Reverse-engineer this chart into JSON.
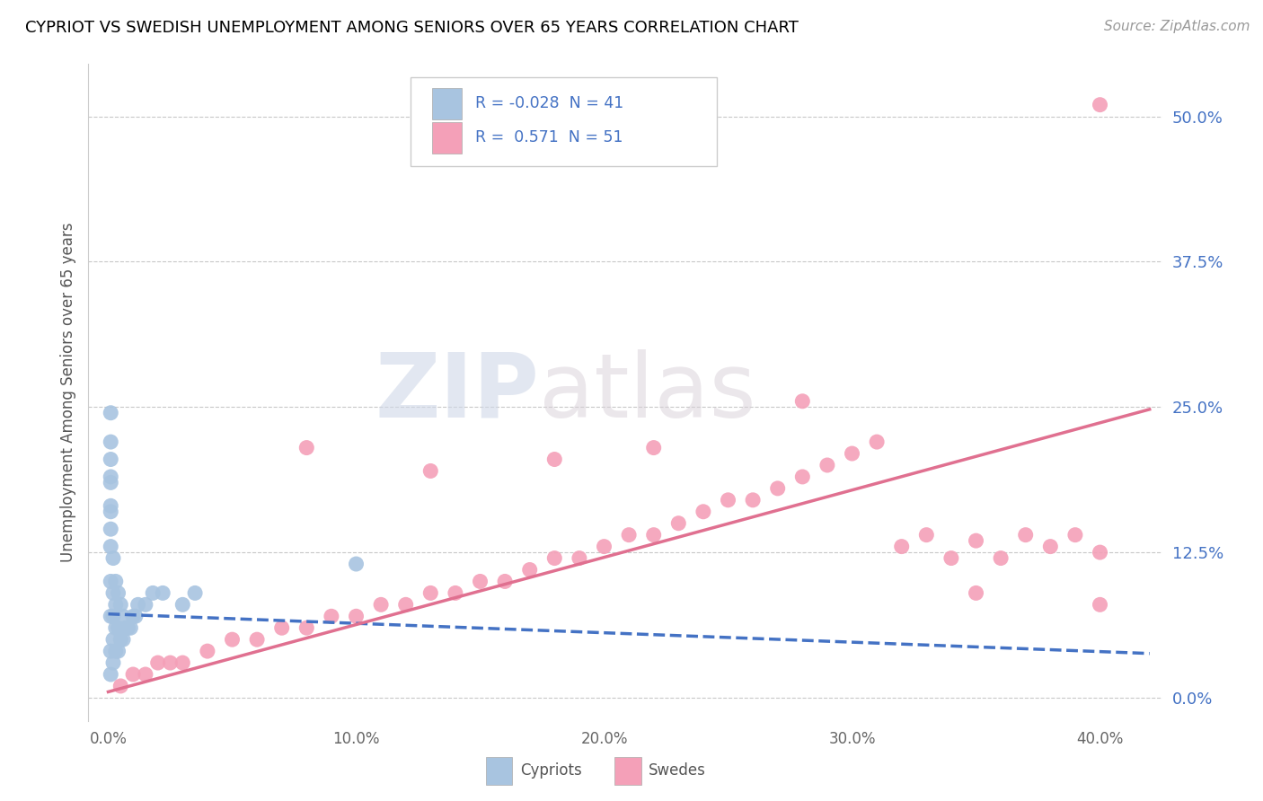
{
  "title": "CYPRIOT VS SWEDISH UNEMPLOYMENT AMONG SENIORS OVER 65 YEARS CORRELATION CHART",
  "source": "Source: ZipAtlas.com",
  "ylabel": "Unemployment Among Seniors over 65 years",
  "x_tick_labels": [
    "0.0%",
    "10.0%",
    "20.0%",
    "30.0%",
    "40.0%"
  ],
  "x_tick_values": [
    0.0,
    0.1,
    0.2,
    0.3,
    0.4
  ],
  "y_tick_labels": [
    "0.0%",
    "12.5%",
    "25.0%",
    "37.5%",
    "50.0%"
  ],
  "y_tick_values": [
    0.0,
    0.125,
    0.25,
    0.375,
    0.5
  ],
  "xlim": [
    -0.008,
    0.425
  ],
  "ylim": [
    -0.02,
    0.545
  ],
  "cypriot_color": "#a8c4e0",
  "swedish_color": "#f4a0b8",
  "cypriot_line_color": "#4472c4",
  "swedish_line_color": "#e07090",
  "background_color": "#ffffff",
  "grid_color": "#c8c8c8",
  "legend_text_color": "#4472c4",
  "r1_val": "-0.028",
  "n1_val": "41",
  "r2_val": "0.571",
  "n2_val": "51",
  "cypriot_x": [
    0.001,
    0.001,
    0.001,
    0.001,
    0.001,
    0.001,
    0.001,
    0.001,
    0.002,
    0.002,
    0.002,
    0.002,
    0.002,
    0.003,
    0.003,
    0.003,
    0.003,
    0.004,
    0.004,
    0.004,
    0.005,
    0.005,
    0.006,
    0.006,
    0.007,
    0.008,
    0.009,
    0.01,
    0.011,
    0.012,
    0.015,
    0.018,
    0.022,
    0.03,
    0.035,
    0.001,
    0.001,
    0.001,
    0.001,
    0.001,
    0.1
  ],
  "cypriot_y": [
    0.04,
    0.07,
    0.1,
    0.13,
    0.16,
    0.19,
    0.22,
    0.02,
    0.03,
    0.05,
    0.07,
    0.09,
    0.12,
    0.04,
    0.06,
    0.08,
    0.1,
    0.04,
    0.06,
    0.09,
    0.05,
    0.08,
    0.05,
    0.07,
    0.06,
    0.06,
    0.06,
    0.07,
    0.07,
    0.08,
    0.08,
    0.09,
    0.09,
    0.08,
    0.09,
    0.145,
    0.165,
    0.185,
    0.205,
    0.245,
    0.115
  ],
  "swedish_x": [
    0.005,
    0.01,
    0.015,
    0.02,
    0.025,
    0.03,
    0.04,
    0.05,
    0.06,
    0.07,
    0.08,
    0.09,
    0.1,
    0.11,
    0.12,
    0.13,
    0.14,
    0.15,
    0.16,
    0.17,
    0.18,
    0.19,
    0.2,
    0.21,
    0.22,
    0.23,
    0.24,
    0.25,
    0.26,
    0.27,
    0.28,
    0.29,
    0.3,
    0.31,
    0.32,
    0.33,
    0.34,
    0.35,
    0.36,
    0.37,
    0.38,
    0.39,
    0.4,
    0.08,
    0.13,
    0.18,
    0.22,
    0.28,
    0.35,
    0.4,
    0.4
  ],
  "swedish_y": [
    0.01,
    0.02,
    0.02,
    0.03,
    0.03,
    0.03,
    0.04,
    0.05,
    0.05,
    0.06,
    0.06,
    0.07,
    0.07,
    0.08,
    0.08,
    0.09,
    0.09,
    0.1,
    0.1,
    0.11,
    0.12,
    0.12,
    0.13,
    0.14,
    0.14,
    0.15,
    0.16,
    0.17,
    0.17,
    0.18,
    0.19,
    0.2,
    0.21,
    0.22,
    0.13,
    0.14,
    0.12,
    0.09,
    0.12,
    0.14,
    0.13,
    0.14,
    0.08,
    0.215,
    0.195,
    0.205,
    0.215,
    0.255,
    0.135,
    0.51,
    0.125
  ],
  "cypriot_trendline_x": [
    0.0,
    0.42
  ],
  "cypriot_trendline_y": [
    0.072,
    0.038
  ],
  "swedish_trendline_x": [
    0.0,
    0.42
  ],
  "swedish_trendline_y": [
    0.005,
    0.248
  ]
}
